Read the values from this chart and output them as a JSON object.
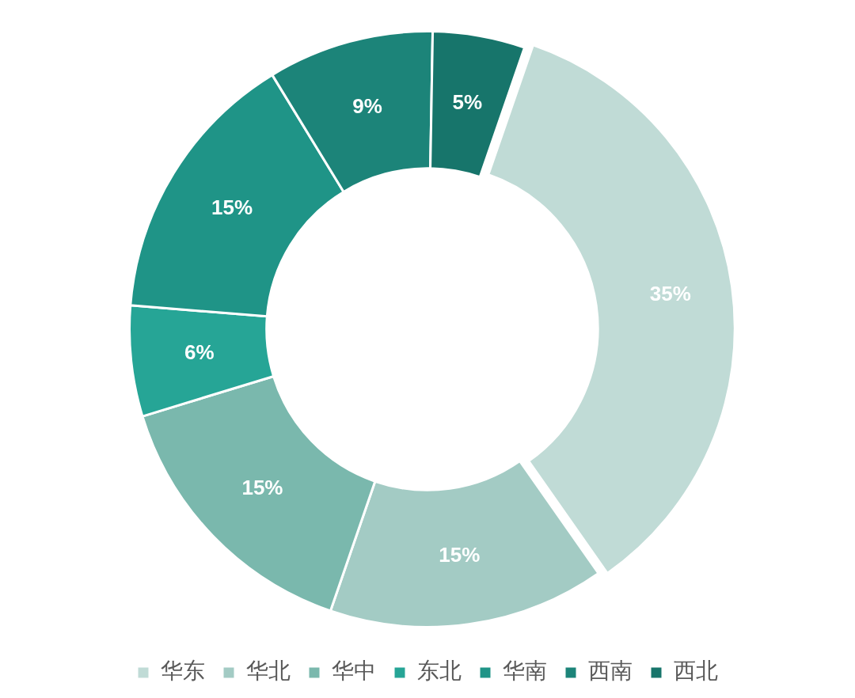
{
  "chart_data": {
    "type": "donut",
    "categories": [
      "华东",
      "华北",
      "华中",
      "东北",
      "华南",
      "西南",
      "西北"
    ],
    "values": [
      35,
      15,
      15,
      6,
      15,
      9,
      5
    ],
    "value_labels": [
      "35%",
      "15%",
      "15%",
      "6%",
      "15%",
      "9%",
      "5%"
    ],
    "colors": [
      "#c0dbd6",
      "#a3cbc4",
      "#7ab8ad",
      "#26a596",
      "#1f9487",
      "#1c8479",
      "#17756b"
    ],
    "legend": "bottom"
  }
}
